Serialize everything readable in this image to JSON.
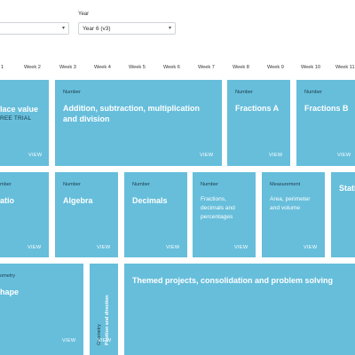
{
  "filters": {
    "year_label": "Year",
    "year_value": "Year 6 (v3)"
  },
  "weeks": [
    "1",
    "Week 2",
    "Week 3",
    "Week 4",
    "Week 5",
    "Week 6",
    "Week 7",
    "Week 8",
    "Week 9",
    "Week 10",
    "Week 11"
  ],
  "cards": {
    "place_value": {
      "title": "lace value",
      "sub": "REE TRIAL",
      "view": "VIEW"
    },
    "addition": {
      "category": "Number",
      "title": "Addition, subtraction, multiplication and division",
      "view": "VIEW"
    },
    "fractions_a": {
      "category": "Number",
      "title": "Fractions A",
      "view": "VIEW"
    },
    "fractions_b": {
      "category": "Number",
      "title": "Fractions B",
      "view": "VIEW"
    },
    "ratio": {
      "category": "mber",
      "title": "atio",
      "view": "VIEW"
    },
    "algebra": {
      "category": "Number",
      "title": "Algebra",
      "view": "VIEW"
    },
    "decimals": {
      "category": "Number",
      "title": "Decimals",
      "view": "VIEW"
    },
    "fdp": {
      "category": "Number",
      "title": "Fractions, decimals and percentages",
      "view": "VIEW"
    },
    "measurement": {
      "category": "Measurement",
      "title": "Area, perimeter and volume",
      "view": "VIEW"
    },
    "statistics": {
      "title": "Stati"
    },
    "shape": {
      "category": "ometry",
      "title": "hape",
      "view": "VIEW"
    },
    "position": {
      "category": "Geometry",
      "title": "Position and direction",
      "view": "VIEW"
    },
    "themed": {
      "title": "Themed projects, consolidation and problem solving"
    }
  },
  "colors": {
    "card": "#66bedb",
    "category_text": "#1d3b4a"
  }
}
